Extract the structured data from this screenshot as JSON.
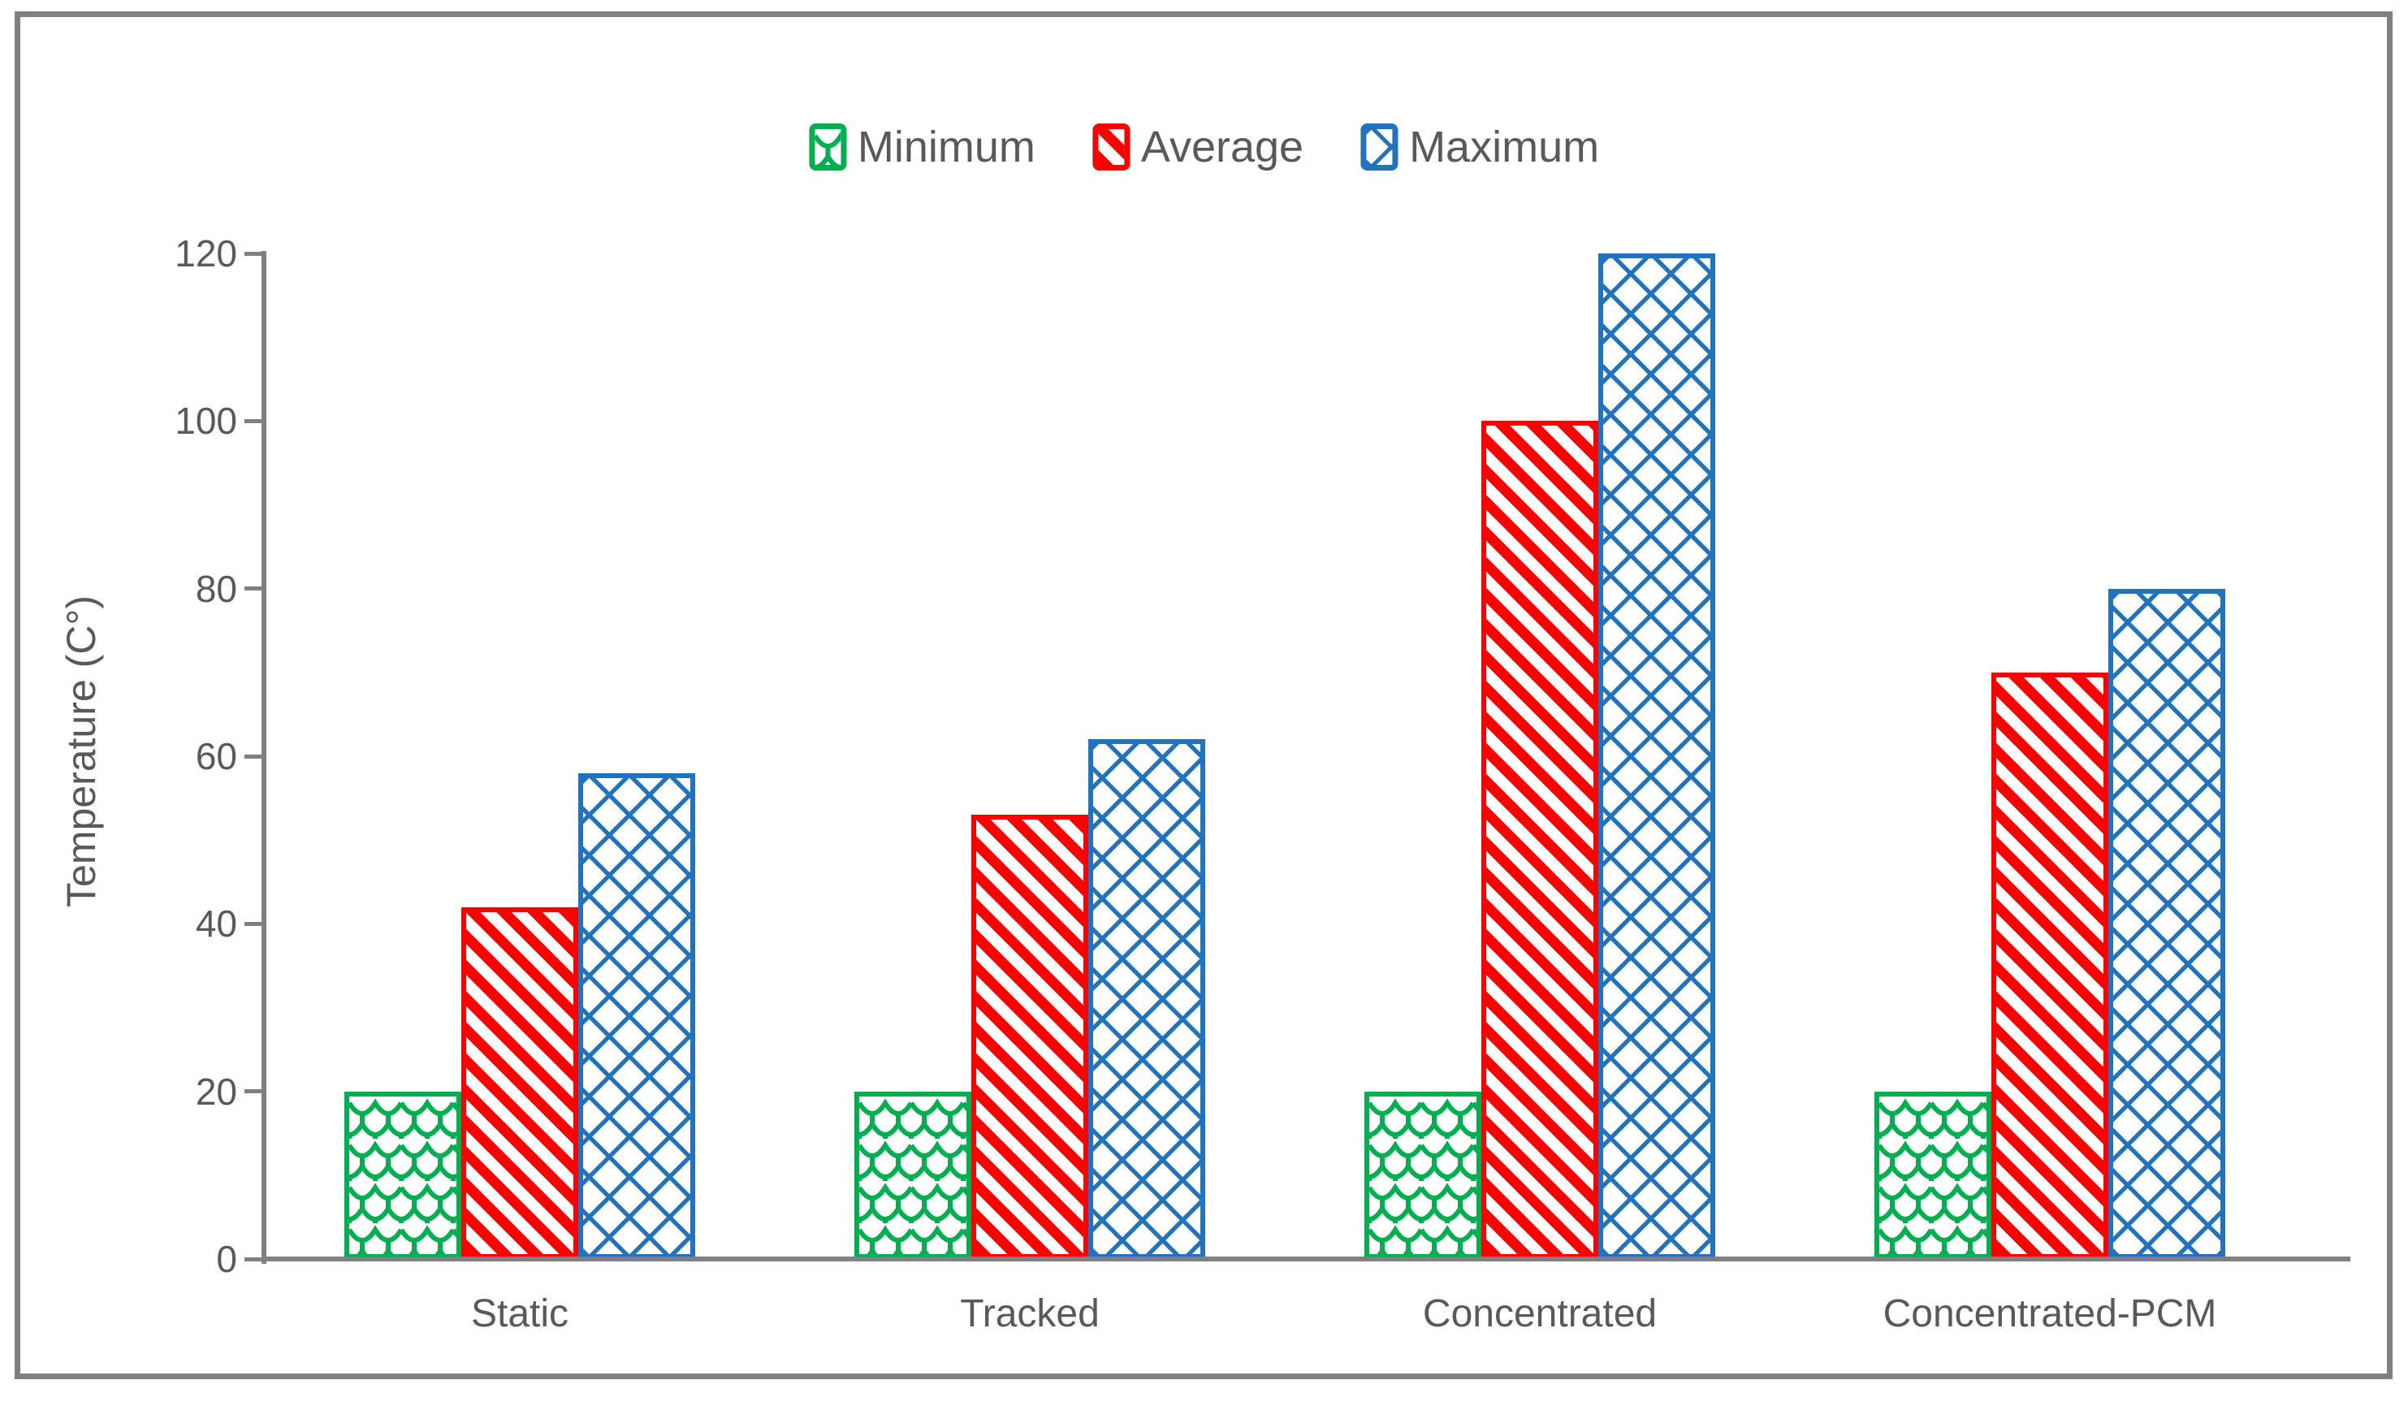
{
  "figure": {
    "frame_color": "#808080",
    "background": "#FFFFFF",
    "text_color": "#595959",
    "axis_color": "#808080"
  },
  "legend": {
    "items": [
      {
        "label": "Minimum",
        "color": "#00B050",
        "pattern": "shingle"
      },
      {
        "label": "Average",
        "color": "#FF0000",
        "pattern": "diagonal-stripes"
      },
      {
        "label": "Maximum",
        "color": "#2073BC",
        "pattern": "diagonal-crosshatch"
      }
    ]
  },
  "chart_data": {
    "type": "bar",
    "title": "",
    "categories": [
      "Static",
      "Tracked",
      "Concentrated",
      "Concentrated-PCM"
    ],
    "series": [
      {
        "name": "Minimum",
        "values": [
          20,
          20,
          20,
          20
        ],
        "color": "#00B050",
        "pattern": "shingle"
      },
      {
        "name": "Average",
        "values": [
          42,
          53,
          100,
          70
        ],
        "color": "#FF0000",
        "pattern": "diagonal-stripes"
      },
      {
        "name": "Maximum",
        "values": [
          58,
          62,
          120,
          80
        ],
        "color": "#2073BC",
        "pattern": "diagonal-crosshatch"
      }
    ],
    "xlabel": "",
    "ylabel": "Temperature (C°)",
    "ylim": [
      0,
      120
    ],
    "yticks": [
      0,
      20,
      40,
      60,
      80,
      100,
      120
    ],
    "grid": false,
    "legend_position": "top"
  }
}
